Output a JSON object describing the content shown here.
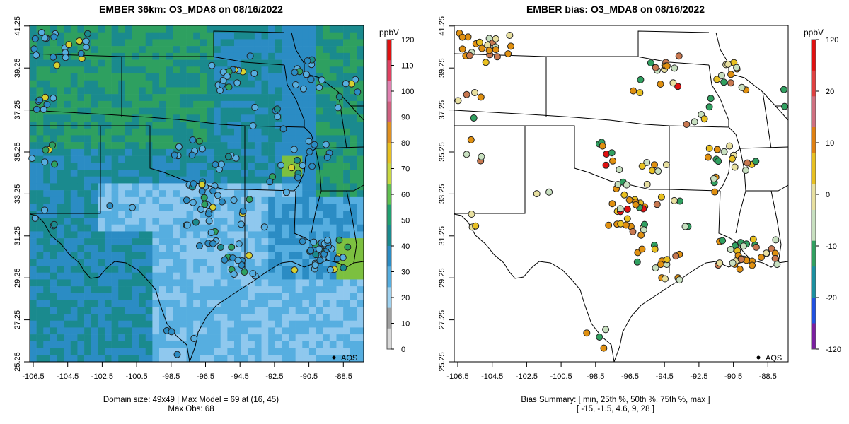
{
  "left": {
    "title": "EMBER 36km: O3_MDA8 on 08/16/2022",
    "units": "ppbV",
    "legend_label": "AQS",
    "footer_line1": "Domain size: 49x49 | Max Model = 69 at (16, 45)",
    "footer_line2": "Max Obs: 68",
    "colorbar_ticks": [
      "0",
      "10",
      "20",
      "30",
      "40",
      "50",
      "60",
      "70",
      "80",
      "90",
      "100",
      "110",
      "120"
    ]
  },
  "right": {
    "title": "EMBER bias: O3_MDA8 on 08/16/2022",
    "units": "ppbV",
    "legend_label": "AQS",
    "footer_line1": "Bias Summary: [ min, 25th %, 50th %, 75th %, max ]",
    "footer_line2": "[ -15,   -1.5,   4.6,   9,   28 ]",
    "colorbar_ticks": [
      "-120",
      "-20",
      "-10",
      "0",
      "10",
      "20",
      "120"
    ]
  },
  "axes": {
    "lon_ticks": [
      "-106.5",
      "-104.5",
      "-102.5",
      "-100.5",
      "-98.5",
      "-96.5",
      "-94.5",
      "-92.5",
      "-90.5",
      "-88.5"
    ],
    "lat_ticks": [
      "25.25",
      "27.25",
      "29.25",
      "31.25",
      "33.25",
      "35.25",
      "37.25",
      "39.25",
      "41.25"
    ]
  },
  "colors": {
    "model_palette": [
      "#d9d9d9",
      "#a0a0a0",
      "#8fc8ee",
      "#56aee0",
      "#2b8cc4",
      "#1a8a8e",
      "#2ea060",
      "#7cc040",
      "#d8d030",
      "#e8a020",
      "#e06020",
      "#e04040",
      "#e080c0"
    ],
    "bias_palette": [
      "#7a1fa0",
      "#1030e0",
      "#1a90a0",
      "#30a060",
      "#c8e0c0",
      "#e8e0a0",
      "#e8c020",
      "#e09010",
      "#c87850",
      "#e04040",
      "#e01010"
    ]
  }
}
